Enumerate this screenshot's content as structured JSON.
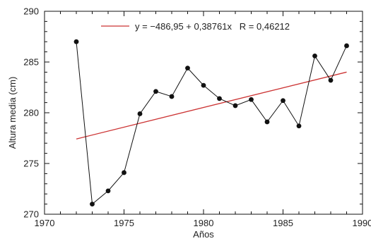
{
  "chart_data": {
    "type": "line",
    "title": "",
    "xlabel": "Años",
    "ylabel": "Altura media (cm)",
    "xlim": [
      1970,
      1990
    ],
    "ylim": [
      270,
      290
    ],
    "x_ticks": [
      1970,
      1975,
      1980,
      1985,
      1990
    ],
    "y_ticks": [
      270,
      275,
      280,
      285,
      290
    ],
    "grid": false,
    "legend_position": "top",
    "colors": {
      "data_series": "#111111",
      "trend_line": "#cc3333"
    },
    "series": [
      {
        "x": [
          1972,
          1973,
          1974,
          1975,
          1976,
          1977,
          1978,
          1979,
          1980,
          1981,
          1982,
          1983,
          1984,
          1985,
          1986,
          1987,
          1988,
          1989
        ],
        "y": [
          287.0,
          271.0,
          272.3,
          274.1,
          279.9,
          282.1,
          281.6,
          284.4,
          282.7,
          281.4,
          280.7,
          281.3,
          279.1,
          281.2,
          278.7,
          285.6,
          283.2,
          286.6
        ]
      }
    ],
    "trend_line": {
      "label": "y = −486,95 + 0,38761x   R = 0,46212",
      "intercept": -486.95,
      "slope": 0.38761,
      "x_range": [
        1972,
        1989
      ]
    }
  }
}
